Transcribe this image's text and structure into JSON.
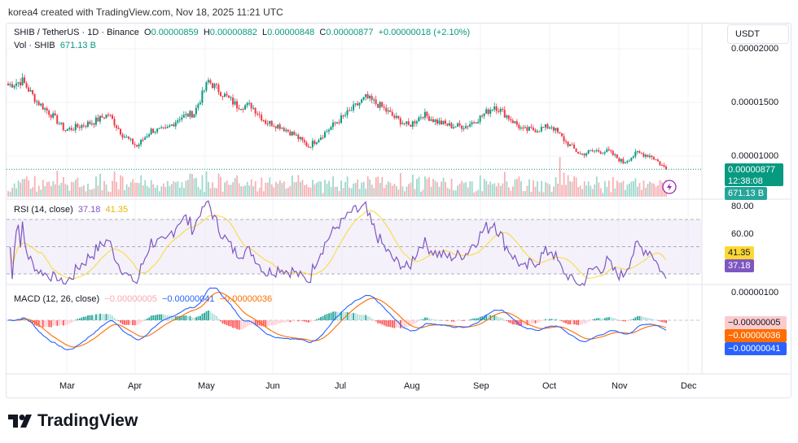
{
  "credit": "korea4 created with TradingView.com, Nov 18, 2025 11:21 UTC",
  "legend": {
    "symbol": "SHIB / TetherUS · 1D · Binance",
    "o_label": "O",
    "o": "0.00000859",
    "h_label": "H",
    "h": "0.00000882",
    "l_label": "L",
    "l": "0.00000848",
    "c_label": "C",
    "c": "0.00000877",
    "change": "+0.00000018 (+2.10%)",
    "vol_label": "Vol · SHIB",
    "vol": "671.13 B"
  },
  "currency": "USDT",
  "price_axis": [
    "0.00002000",
    "0.00001500",
    "0.00001000"
  ],
  "price_tag": "0.00000877",
  "countdown": "12:38:08",
  "vol_tag": "671.13 B",
  "rsi": {
    "label": "RSI (14, close)",
    "value": "37.18",
    "ma": "41.35",
    "axis": [
      "80.00",
      "60.00"
    ]
  },
  "macd": {
    "label": "MACD (12, 26, close)",
    "hist": "−0.00000005",
    "macd": "−0.00000041",
    "signal": "−0.00000036",
    "axis": [
      "0.00000100"
    ]
  },
  "months": [
    "Mar",
    "Apr",
    "May",
    "Jun",
    "Jul",
    "Aug",
    "Sep",
    "Oct",
    "Nov",
    "Dec"
  ],
  "brand": "TradingView",
  "colors": {
    "up": "#089981",
    "down": "#f23645",
    "rsi": "#7e57c2",
    "rsi_ma": "#fdd835",
    "macd": "#2962ff",
    "signal": "#ff6d00"
  },
  "chart_data": {
    "type": "candlestick",
    "title": "SHIB / TetherUS 1D",
    "x_start": "2025-02-05",
    "step_days": 7,
    "unit": "1e-8 USDT",
    "weekly_close": [
      1660,
      1700,
      1510,
      1390,
      1240,
      1280,
      1320,
      1390,
      1200,
      1090,
      1240,
      1240,
      1360,
      1400,
      1700,
      1580,
      1470,
      1470,
      1320,
      1280,
      1200,
      1090,
      1200,
      1320,
      1430,
      1545,
      1470,
      1360,
      1280,
      1390,
      1320,
      1280,
      1280,
      1360,
      1470,
      1360,
      1240,
      1250,
      1280,
      1130,
      1015,
      1050,
      1040,
      940,
      1030,
      1000,
      877
    ],
    "ylim": [
      7.5e-06,
      2.15e-05
    ]
  }
}
